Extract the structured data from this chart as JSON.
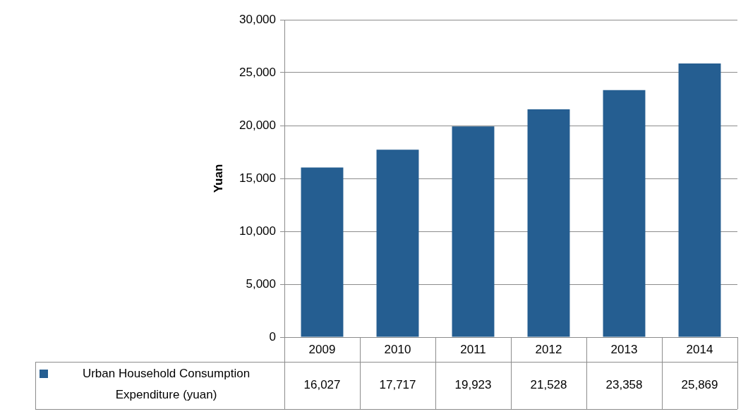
{
  "chart_data": {
    "type": "bar",
    "ylabel": "Yuan",
    "categories": [
      "2009",
      "2010",
      "2011",
      "2012",
      "2013",
      "2014"
    ],
    "series": [
      {
        "name": "Urban Household Consumption Expenditure (yuan)",
        "color": "#255e91",
        "values": [
          16027,
          17717,
          19923,
          21528,
          23358,
          25869
        ],
        "value_labels": [
          "16,027",
          "17,717",
          "19,923",
          "21,528",
          "23,358",
          "25,869"
        ]
      }
    ],
    "ylim": [
      0,
      30000
    ],
    "yticks": [
      {
        "value": 0,
        "label": "0"
      },
      {
        "value": 5000,
        "label": "5,000"
      },
      {
        "value": 10000,
        "label": "10,000"
      },
      {
        "value": 15000,
        "label": "15,000"
      },
      {
        "value": 20000,
        "label": "20,000"
      },
      {
        "value": 25000,
        "label": "25,000"
      },
      {
        "value": 30000,
        "label": "30,000"
      }
    ],
    "grid": "y",
    "legend": "bottom"
  }
}
